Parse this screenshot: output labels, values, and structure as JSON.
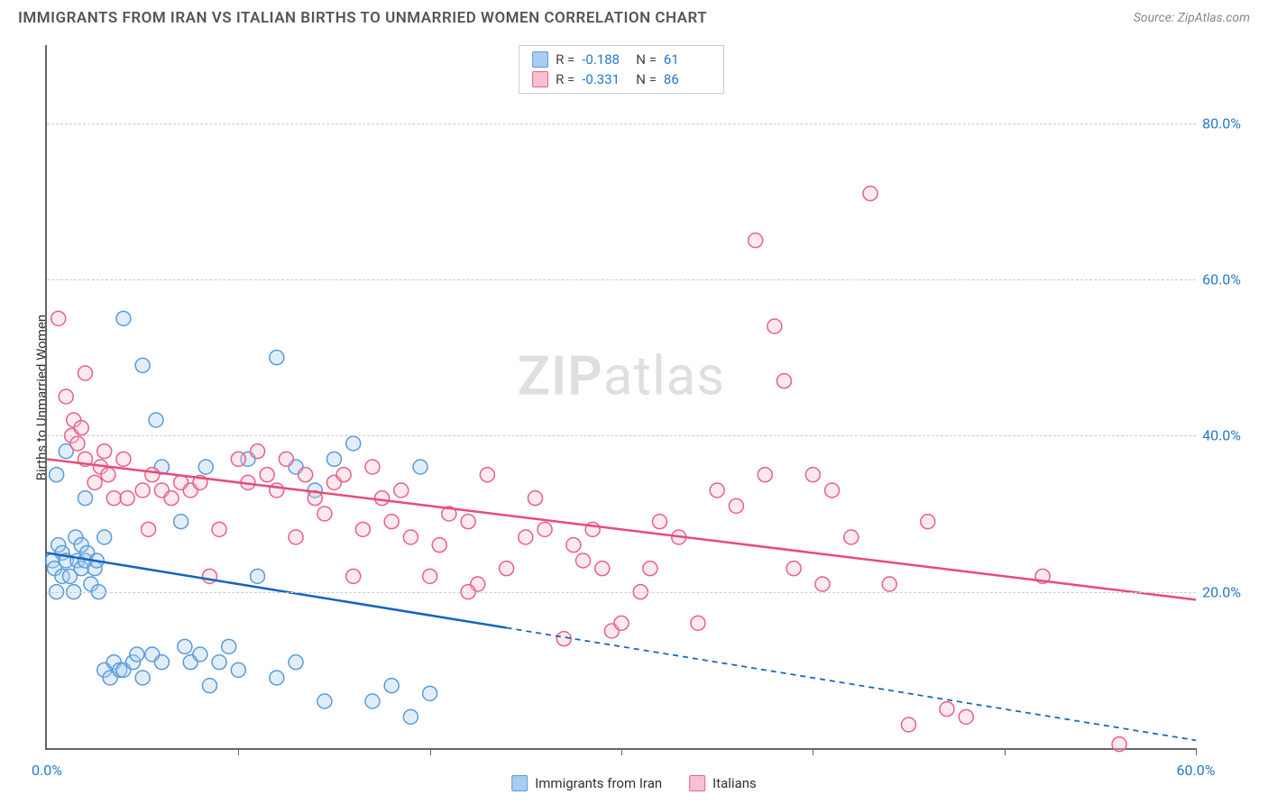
{
  "title": "IMMIGRANTS FROM IRAN VS ITALIAN BIRTHS TO UNMARRIED WOMEN CORRELATION CHART",
  "source": "Source: ZipAtlas.com",
  "watermark": {
    "bold": "ZIP",
    "rest": "atlas"
  },
  "ylabel": "Births to Unmarried Women",
  "chart": {
    "type": "scatter",
    "background_color": "#ffffff",
    "grid_color": "#cccccc",
    "axis_color": "#666666",
    "tick_label_color": "#2478cc",
    "xlim": [
      0,
      60
    ],
    "ylim": [
      0,
      90
    ],
    "yticks": [
      20,
      40,
      60,
      80
    ],
    "ytick_labels": [
      "20.0%",
      "40.0%",
      "60.0%",
      "80.0%"
    ],
    "xticks": [
      0,
      10,
      20,
      30,
      40,
      50,
      60
    ],
    "xtick_labels": {
      "0": "0.0%",
      "60": "60.0%"
    },
    "point_radius": 8,
    "point_opacity": 0.35,
    "line_width": 2.5,
    "stats_box": {
      "border_color": "#cccccc",
      "rows": [
        {
          "swatch_fill": "#a8cdf0",
          "swatch_border": "#5a9bd8",
          "R_label": "R =",
          "R": "-0.188",
          "N_label": "N =",
          "N": "61"
        },
        {
          "swatch_fill": "#f7c2cf",
          "swatch_border": "#e95f8a",
          "R_label": "R =",
          "R": "-0.331",
          "N_label": "N =",
          "N": "86"
        }
      ]
    },
    "bottom_legend": [
      {
        "swatch_fill": "#a8cdf0",
        "swatch_border": "#5a9bd8",
        "label": "Immigrants from Iran"
      },
      {
        "swatch_fill": "#f7c2cf",
        "swatch_border": "#e95f8a",
        "label": "Italians"
      }
    ],
    "series": [
      {
        "name": "Immigrants from Iran",
        "fill": "#a8cdf0",
        "stroke": "#5a9bd8",
        "regression": {
          "color": "#1565c0",
          "y_at_x0": 25,
          "y_at_xmax": 1,
          "solid_until_x": 24
        },
        "points": [
          [
            0.3,
            24
          ],
          [
            0.4,
            23
          ],
          [
            0.6,
            26
          ],
          [
            0.5,
            20
          ],
          [
            0.8,
            22
          ],
          [
            0.8,
            25
          ],
          [
            1,
            24
          ],
          [
            1,
            38
          ],
          [
            1.2,
            22
          ],
          [
            1.4,
            20
          ],
          [
            1.5,
            27
          ],
          [
            1.6,
            24
          ],
          [
            1.8,
            23
          ],
          [
            1.8,
            26
          ],
          [
            2,
            32
          ],
          [
            2,
            24
          ],
          [
            2.1,
            25
          ],
          [
            2.3,
            21
          ],
          [
            2.5,
            23
          ],
          [
            2.6,
            24
          ],
          [
            2.7,
            20
          ],
          [
            3,
            27
          ],
          [
            3,
            10
          ],
          [
            3.3,
            9
          ],
          [
            3.5,
            11
          ],
          [
            3.8,
            10
          ],
          [
            4,
            10
          ],
          [
            4,
            55
          ],
          [
            4.5,
            11
          ],
          [
            4.7,
            12
          ],
          [
            5,
            9
          ],
          [
            5,
            49
          ],
          [
            5.5,
            12
          ],
          [
            5.7,
            42
          ],
          [
            6,
            11
          ],
          [
            6,
            36
          ],
          [
            7,
            29
          ],
          [
            7.2,
            13
          ],
          [
            7.5,
            11
          ],
          [
            8,
            12
          ],
          [
            8.3,
            36
          ],
          [
            8.5,
            8
          ],
          [
            9,
            11
          ],
          [
            9.5,
            13
          ],
          [
            10,
            10
          ],
          [
            10.5,
            37
          ],
          [
            12,
            9
          ],
          [
            12,
            50
          ],
          [
            13,
            11
          ],
          [
            13,
            36
          ],
          [
            14,
            33
          ],
          [
            14.5,
            6
          ],
          [
            15,
            37
          ],
          [
            17,
            6
          ],
          [
            18,
            8
          ],
          [
            19,
            4
          ],
          [
            19.5,
            36
          ],
          [
            20,
            7
          ],
          [
            16,
            39
          ],
          [
            11,
            22
          ],
          [
            0.5,
            35
          ]
        ]
      },
      {
        "name": "Italians",
        "fill": "#f7c2cf",
        "stroke": "#e95f8a",
        "regression": {
          "color": "#e94b7a",
          "y_at_x0": 37,
          "y_at_xmax": 19,
          "solid_until_x": 60
        },
        "points": [
          [
            0.6,
            55
          ],
          [
            1,
            45
          ],
          [
            1.3,
            40
          ],
          [
            1.4,
            42
          ],
          [
            1.6,
            39
          ],
          [
            1.8,
            41
          ],
          [
            2,
            37
          ],
          [
            2,
            48
          ],
          [
            2.5,
            34
          ],
          [
            2.8,
            36
          ],
          [
            3,
            38
          ],
          [
            3.2,
            35
          ],
          [
            3.5,
            32
          ],
          [
            4,
            37
          ],
          [
            4.2,
            32
          ],
          [
            5,
            33
          ],
          [
            5.3,
            28
          ],
          [
            5.5,
            35
          ],
          [
            6,
            33
          ],
          [
            6.5,
            32
          ],
          [
            7,
            34
          ],
          [
            7.5,
            33
          ],
          [
            8,
            34
          ],
          [
            8.5,
            22
          ],
          [
            9,
            28
          ],
          [
            10,
            37
          ],
          [
            10.5,
            34
          ],
          [
            11,
            38
          ],
          [
            11.5,
            35
          ],
          [
            12,
            33
          ],
          [
            12.5,
            37
          ],
          [
            13,
            27
          ],
          [
            13.5,
            35
          ],
          [
            14,
            32
          ],
          [
            14.5,
            30
          ],
          [
            15,
            34
          ],
          [
            15.5,
            35
          ],
          [
            16,
            22
          ],
          [
            16.5,
            28
          ],
          [
            17,
            36
          ],
          [
            17.5,
            32
          ],
          [
            18,
            29
          ],
          [
            18.5,
            33
          ],
          [
            19,
            27
          ],
          [
            20,
            22
          ],
          [
            20.5,
            26
          ],
          [
            21,
            30
          ],
          [
            22,
            29
          ],
          [
            22.5,
            21
          ],
          [
            23,
            35
          ],
          [
            24,
            23
          ],
          [
            25,
            27
          ],
          [
            25.5,
            32
          ],
          [
            26,
            28
          ],
          [
            27,
            14
          ],
          [
            27.5,
            26
          ],
          [
            28,
            24
          ],
          [
            28.5,
            28
          ],
          [
            29,
            23
          ],
          [
            29.5,
            15
          ],
          [
            30,
            16
          ],
          [
            31,
            20
          ],
          [
            31.5,
            23
          ],
          [
            32,
            29
          ],
          [
            33,
            27
          ],
          [
            34,
            16
          ],
          [
            35,
            33
          ],
          [
            36,
            31
          ],
          [
            37,
            65
          ],
          [
            37.5,
            35
          ],
          [
            38,
            54
          ],
          [
            38.5,
            47
          ],
          [
            39,
            23
          ],
          [
            40,
            35
          ],
          [
            40.5,
            21
          ],
          [
            41,
            33
          ],
          [
            42,
            27
          ],
          [
            43,
            71
          ],
          [
            44,
            21
          ],
          [
            45,
            3
          ],
          [
            46,
            29
          ],
          [
            47,
            5
          ],
          [
            48,
            4
          ],
          [
            52,
            22
          ],
          [
            56,
            0.5
          ],
          [
            22,
            20
          ]
        ]
      }
    ]
  }
}
